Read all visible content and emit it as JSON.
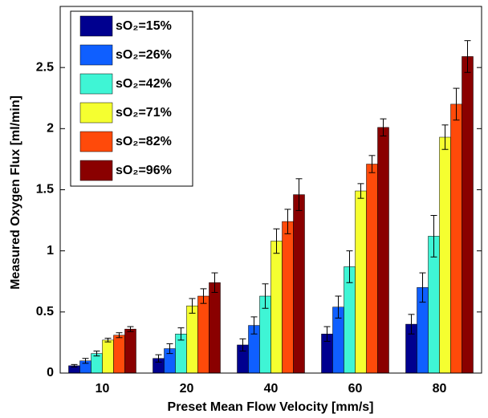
{
  "chart_data": {
    "type": "bar",
    "x_label": "Preset Mean Flow Velocity [mm/s]",
    "y_label": "Measured Oxygen Flux [ml/min]",
    "categories": [
      "10",
      "20",
      "40",
      "60",
      "80"
    ],
    "series": [
      {
        "name": "sO₂=15%",
        "color": "#00008f",
        "values": [
          0.06,
          0.12,
          0.23,
          0.32,
          0.4
        ],
        "errors": [
          0.01,
          0.03,
          0.05,
          0.06,
          0.08
        ]
      },
      {
        "name": "sO₂=26%",
        "color": "#0f5fff",
        "values": [
          0.1,
          0.2,
          0.39,
          0.54,
          0.7
        ],
        "errors": [
          0.02,
          0.04,
          0.07,
          0.09,
          0.12
        ]
      },
      {
        "name": "sO₂=42%",
        "color": "#3ff5d5",
        "values": [
          0.16,
          0.32,
          0.63,
          0.87,
          1.12
        ],
        "errors": [
          0.02,
          0.05,
          0.1,
          0.13,
          0.17
        ]
      },
      {
        "name": "sO₂=71%",
        "color": "#f5ff30",
        "values": [
          0.27,
          0.55,
          1.08,
          1.49,
          1.93
        ],
        "errors": [
          0.015,
          0.06,
          0.1,
          0.06,
          0.1
        ]
      },
      {
        "name": "sO₂=82%",
        "color": "#ff4a0a",
        "values": [
          0.31,
          0.63,
          1.24,
          1.71,
          2.2
        ],
        "errors": [
          0.02,
          0.06,
          0.1,
          0.07,
          0.13
        ]
      },
      {
        "name": "sO₂=96%",
        "color": "#8a0000",
        "values": [
          0.36,
          0.74,
          1.46,
          2.01,
          2.59
        ],
        "errors": [
          0.02,
          0.08,
          0.13,
          0.07,
          0.13
        ]
      }
    ],
    "ylim": [
      0,
      3
    ],
    "yticks": [
      0,
      0.5,
      1,
      1.5,
      2,
      2.5
    ],
    "legend": "upper left"
  }
}
